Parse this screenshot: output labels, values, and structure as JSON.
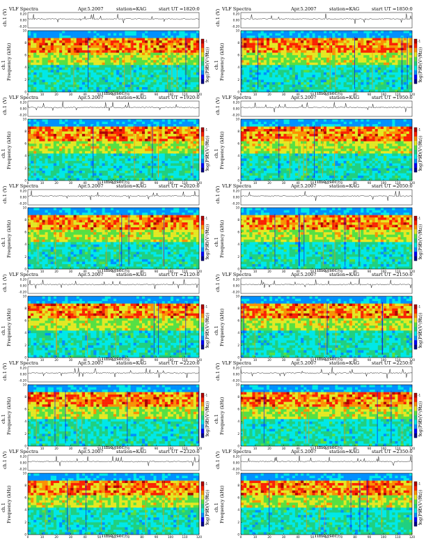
{
  "labels": {
    "header_prefix": "VLF Spectra",
    "date": "Apr.5.2007",
    "station": "station=KAG",
    "start_ut_prefix": "start  UT =",
    "ch_label": "ch.1 (V)",
    "freq_label_ch": "ch.1",
    "freq_label": "Frequency  (kHz)",
    "cbar_label": "log(PSD(V²/Hz))",
    "xlabel": "Time  (sec)"
  },
  "axes": {
    "x_ticks": [
      "0",
      "10",
      "20",
      "30",
      "40",
      "50",
      "60",
      "70",
      "80",
      "90",
      "100",
      "110",
      "120"
    ],
    "freq_ticks": [
      "0",
      "2",
      "4",
      "6",
      "8",
      "10"
    ],
    "volt_ticks": [
      "0.20",
      "0.00",
      "-0.20"
    ],
    "cbar_ticks": [
      "-1",
      "-3",
      "-5",
      "-7"
    ]
  },
  "colors": {
    "colormap": [
      "#00008b",
      "#0000ff",
      "#0090ff",
      "#00e8e8",
      "#20d080",
      "#58e040",
      "#e8e820",
      "#ff9000",
      "#ff2000",
      "#b00000"
    ]
  },
  "chart_data": [
    {
      "type": "heatmap",
      "start_ut": "1820:0",
      "xlim": [
        0,
        120
      ],
      "ylim": [
        0,
        10
      ]
    },
    {
      "type": "heatmap",
      "start_ut": "1850:0",
      "xlim": [
        0,
        120
      ],
      "ylim": [
        0,
        10
      ]
    },
    {
      "type": "heatmap",
      "start_ut": "1920:0",
      "xlim": [
        0,
        120
      ],
      "ylim": [
        0,
        10
      ]
    },
    {
      "type": "heatmap",
      "start_ut": "1950:0",
      "xlim": [
        0,
        120
      ],
      "ylim": [
        0,
        10
      ]
    },
    {
      "type": "heatmap",
      "start_ut": "2020:0",
      "xlim": [
        0,
        120
      ],
      "ylim": [
        0,
        10
      ]
    },
    {
      "type": "heatmap",
      "start_ut": "2050:0",
      "xlim": [
        0,
        120
      ],
      "ylim": [
        0,
        10
      ]
    },
    {
      "type": "heatmap",
      "start_ut": "2120:0",
      "xlim": [
        0,
        120
      ],
      "ylim": [
        0,
        10
      ]
    },
    {
      "type": "heatmap",
      "start_ut": "2150:0",
      "xlim": [
        0,
        120
      ],
      "ylim": [
        0,
        10
      ]
    },
    {
      "type": "heatmap",
      "start_ut": "2220:0",
      "xlim": [
        0,
        120
      ],
      "ylim": [
        0,
        10
      ]
    },
    {
      "type": "heatmap",
      "start_ut": "2250:0",
      "xlim": [
        0,
        120
      ],
      "ylim": [
        0,
        10
      ]
    },
    {
      "type": "heatmap",
      "start_ut": "2320:0",
      "xlim": [
        0,
        120
      ],
      "ylim": [
        0,
        10
      ]
    },
    {
      "type": "heatmap",
      "start_ut": "2350:0",
      "xlim": [
        0,
        120
      ],
      "ylim": [
        0,
        10
      ]
    }
  ]
}
